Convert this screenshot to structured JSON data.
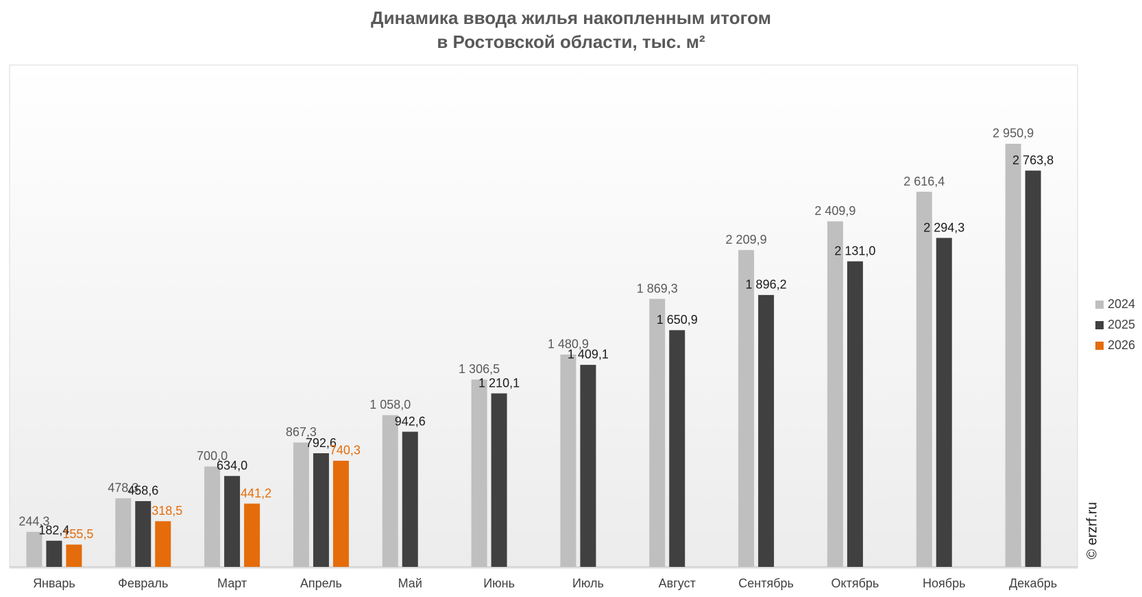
{
  "chart_data": {
    "type": "bar",
    "title": [
      "Динамика ввода жилья накопленным итогом",
      "в Ростовской области, тыс. м²"
    ],
    "watermark": "© erzrf.ru",
    "categories": [
      "Январь",
      "Февраль",
      "Март",
      "Апрель",
      "Май",
      "Июнь",
      "Июль",
      "Август",
      "Сентябрь",
      "Октябрь",
      "Ноябрь",
      "Декабрь"
    ],
    "series": [
      {
        "name": "2024",
        "color": "#bfbfbf",
        "label_color": "#595959",
        "values": [
          244.3,
          478.3,
          700.0,
          867.3,
          1058.0,
          1306.5,
          1480.9,
          1869.3,
          2209.9,
          2409.9,
          2616.4,
          2950.9
        ],
        "value_labels": [
          "244,3",
          "478,3",
          "700,0",
          "867,3",
          "1 058,0",
          "1 306,5",
          "1 480,9",
          "1 869,3",
          "2 209,9",
          "2 409,9",
          "2 616,4",
          "2 950,9"
        ]
      },
      {
        "name": "2025",
        "color": "#404040",
        "label_color": "#1a1a1a",
        "values": [
          182.4,
          458.6,
          634.0,
          792.6,
          942.6,
          1210.1,
          1409.1,
          1650.9,
          1896.2,
          2131.0,
          2294.3,
          2763.8
        ],
        "value_labels": [
          "182,4",
          "458,6",
          "634,0",
          "792,6",
          "942,6",
          "1 210,1",
          "1 409,1",
          "1 650,9",
          "1 896,2",
          "2 131,0",
          "2 294,3",
          "2 763,8"
        ]
      },
      {
        "name": "2026",
        "color": "#e46c0a",
        "label_color": "#e46c0a",
        "values": [
          155.5,
          318.5,
          441.2,
          740.3,
          null,
          null,
          null,
          null,
          null,
          null,
          null,
          null
        ],
        "value_labels": [
          "155,5",
          "318,5",
          "441,2",
          "740,3",
          null,
          null,
          null,
          null,
          null,
          null,
          null,
          null
        ]
      }
    ],
    "ylim": [
      0,
      3500
    ],
    "grid": false,
    "legend": "right"
  }
}
